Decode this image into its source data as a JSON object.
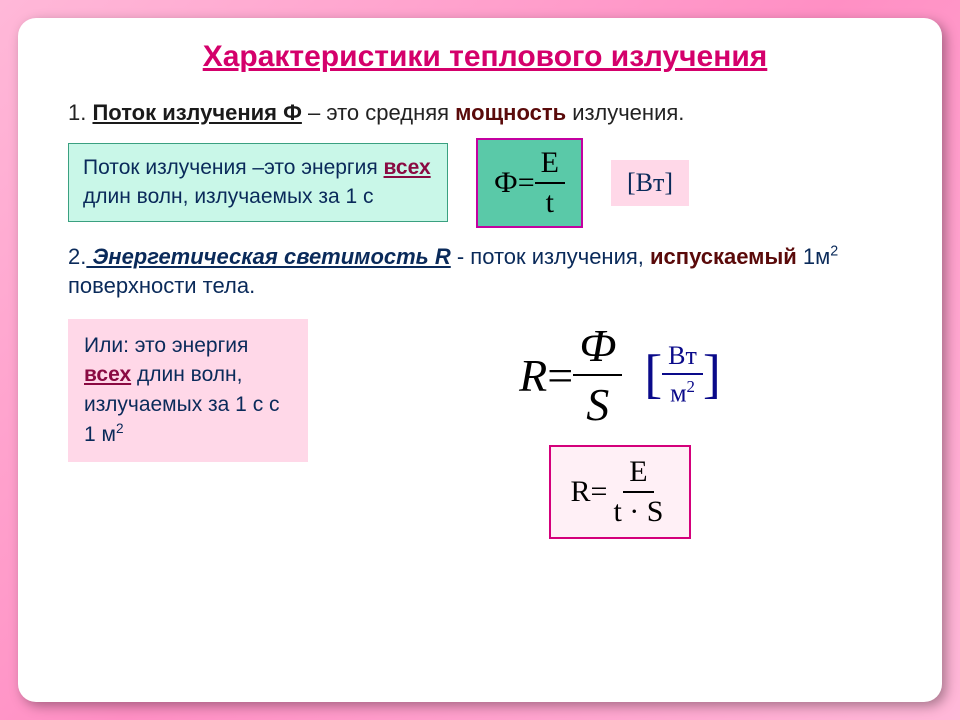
{
  "colors": {
    "page_bg_gradient": [
      "#ffb8d8",
      "#ff8fc4",
      "#ffb8d8"
    ],
    "card_bg": "#ffffff",
    "title": "#d4006b",
    "body_text": "#222222",
    "def_blue": "#0a2a5a",
    "keyword_dark_red": "#5a0a0a",
    "emph_magenta": "#8a0a42",
    "box_cyan_bg": "#c9f7e8",
    "box_cyan_border": "#3aa080",
    "formula_teal_bg": "#5ac9a8",
    "formula_teal_border": "#c400a0",
    "unit_pink_bg": "#ffd8e8",
    "formula_pink_border": "#d4007b",
    "formula_pink_bg": "#fff0f6",
    "unit_bracket_text": "#0a0a8a"
  },
  "typography": {
    "title_fontsize": 30,
    "body_fontsize": 22,
    "box_fontsize": 21,
    "unit_fontsize": 26,
    "formula_big_fontsize": 46,
    "formula_small_fontsize": 30,
    "font_family_body": "Verdana",
    "font_family_formula": "Georgia / Times New Roman"
  },
  "title": "Характеристики теплового излучения",
  "item1": {
    "num": "1.",
    "term": "Поток излучения Ф",
    "dash": " – это средняя ",
    "keyword": "мощность",
    "tail": " излучения."
  },
  "box1": {
    "lead": "Поток излучения –это энергия ",
    "emph": "всех",
    "tail1": " длин волн, излучаемых за 1 с"
  },
  "formula1": {
    "lhs": "Ф",
    "eq": " = ",
    "num": "E",
    "den": "t"
  },
  "unit1": "[Вт]",
  "item2": {
    "num": "2.",
    "term": " Энергетическая светимость R",
    "dash": " - поток излучения, ",
    "keyword": "испускаемый",
    "area_pre": " 1м",
    "area_sup": "2",
    "tail": " поверхности тела."
  },
  "box2": {
    "lead": "Или: это энергия ",
    "emph": "всех",
    "tail1": " длин волн, излучаемых за 1 с  с 1 м",
    "sup": "2"
  },
  "formula2": {
    "lhs": "R",
    "eq": " = ",
    "num": "Ф",
    "den": "S"
  },
  "unit2": {
    "num": "Вт",
    "den_pre": "м",
    "den_sup": "2"
  },
  "formula3": {
    "lhs": "R",
    "eq": " = ",
    "num": "E",
    "den": "t · S"
  }
}
